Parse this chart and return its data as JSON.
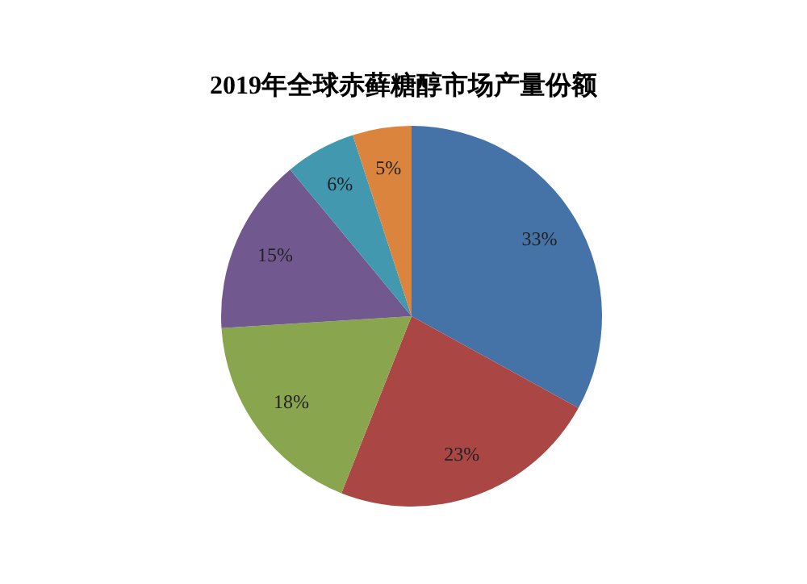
{
  "chart_data": {
    "type": "pie",
    "title": "2019年全球赤藓糖醇市场产量份额",
    "categories": [
      null,
      null,
      null,
      null,
      null,
      null
    ],
    "values": [
      33,
      23,
      18,
      15,
      6,
      5
    ],
    "colors": [
      "#4573a7",
      "#aa4644",
      "#89a54e",
      "#71588f",
      "#4198af",
      "#db843d"
    ],
    "value_labels": [
      "33%",
      "23%",
      "18%",
      "15%",
      "6%",
      "5%"
    ]
  }
}
